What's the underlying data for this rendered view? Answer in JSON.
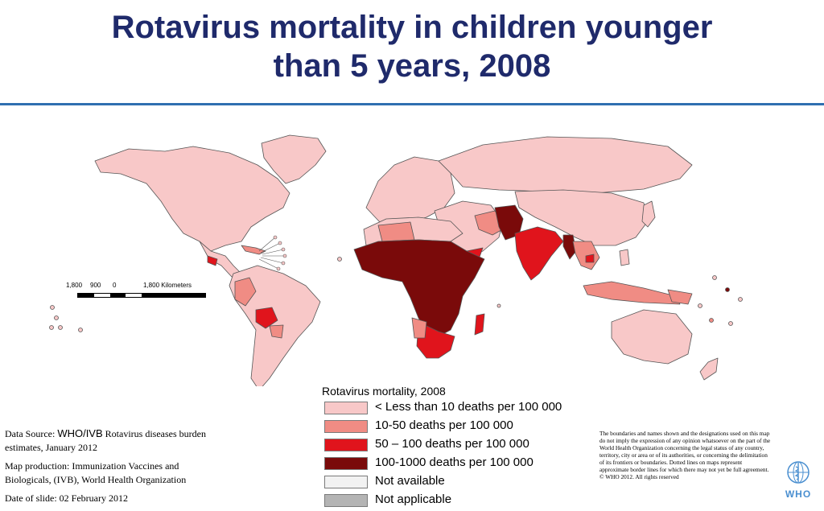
{
  "title_line1": "Rotavirus mortality in children younger",
  "title_line2": "than 5 years, 2008",
  "colors": {
    "title": "#1f2a6b",
    "rule": "#2f6fb0",
    "lt10": "#f8c8c8",
    "r10_50": "#f08c84",
    "r50_100": "#e0141c",
    "r100_1000": "#7a0a0a",
    "not_available": "#f2f2f2",
    "not_applicable": "#b4b4b4",
    "who_blue": "#4a8fd0"
  },
  "scale_bar": {
    "labels": [
      "1,800",
      "900",
      "0",
      "1,800 Kilometers"
    ]
  },
  "legend": {
    "title": "Rotavirus mortality, 2008",
    "items": [
      {
        "label": "< Less than 10 deaths per 100 000",
        "color": "#f8c8c8"
      },
      {
        "label": "10-50 deaths per 100 000",
        "color": "#f08c84"
      },
      {
        "label": "50 – 100 deaths per 100 000",
        "color": "#e0141c"
      },
      {
        "label": "100-1000 deaths per 100 000",
        "color": "#7a0a0a"
      },
      {
        "label": "Not available",
        "color": "#f2f2f2"
      },
      {
        "label": "Not applicable",
        "color": "#b4b4b4"
      }
    ]
  },
  "source": {
    "data_source_prefix": "Data Source:",
    "data_source_org": "WHO/IVB",
    "data_source_rest": "Rotavirus  diseases burden estimates, January 2012",
    "map_production": "Map production: Immunization Vaccines and Biologicals, (IVB), World Health Organization",
    "date": "Date of slide: 02 February 2012"
  },
  "disclaimer": "The boundaries and names shown and the designations used on this map do not imply the expression of any opinion whatsoever on the part of the World Health Organization concerning the legal status of any country, territory, city or area or of its authorities, or concerning the delimitation of its frontiers or boundaries.  Dotted lines on maps represent approximate border lines for which there may not yet be full agreement.",
  "copyright": "© WHO 2012. All rights reserved",
  "who_wordmark": "WHO"
}
